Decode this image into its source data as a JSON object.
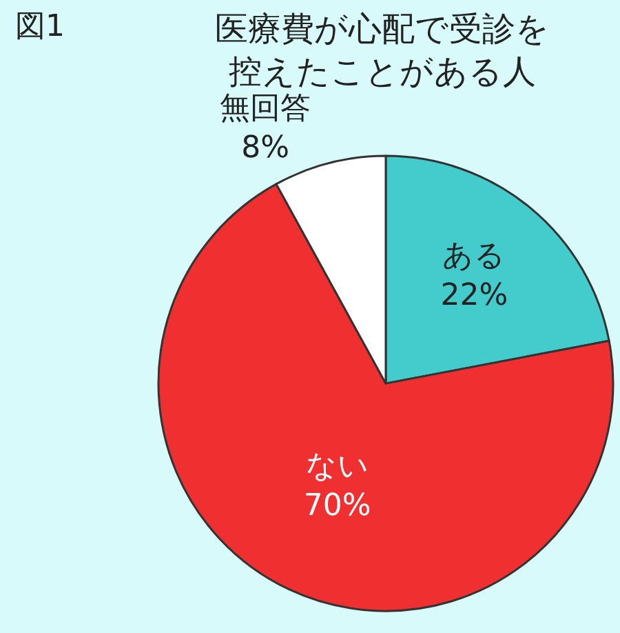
{
  "chart_data": {
    "type": "pie",
    "title": "医療費が心配で受診を控えたことがある人",
    "annotations": [
      "図1"
    ],
    "categories": [
      "ある",
      "ない",
      "無回答"
    ],
    "values": [
      22,
      70,
      8
    ],
    "colors": [
      "#44cccc",
      "#f03030",
      "#ffffff"
    ],
    "value_labels": [
      "22%",
      "70%",
      "8%"
    ],
    "legend": false
  }
}
